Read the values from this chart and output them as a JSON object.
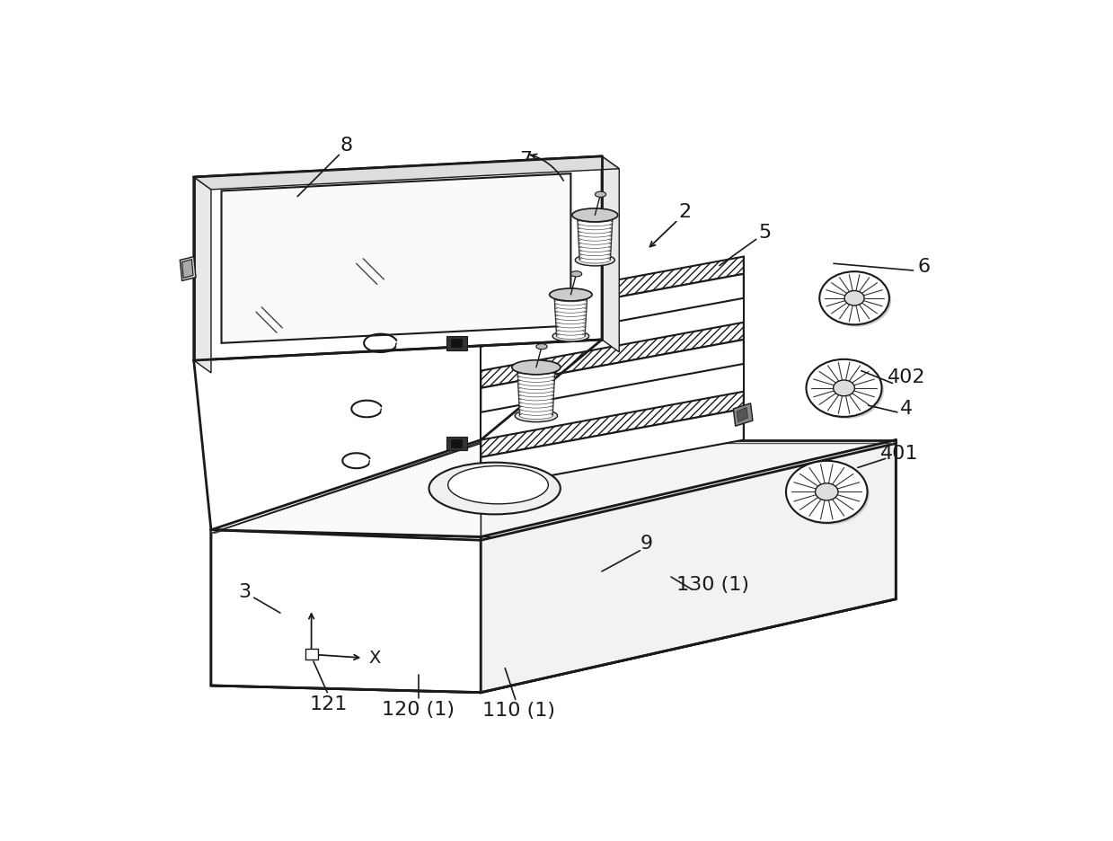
{
  "bg_color": "#ffffff",
  "line_color": "#1a1a1a",
  "figsize": [
    12.39,
    9.36
  ],
  "dpi": 100,
  "label_fs": 16
}
